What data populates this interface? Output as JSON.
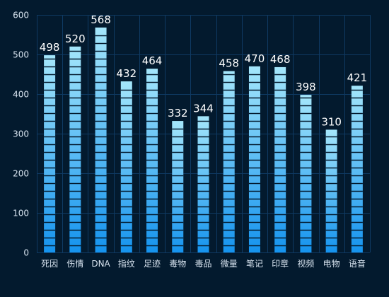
{
  "chart_data": {
    "type": "bar",
    "title": "",
    "xlabel": "",
    "ylabel": "",
    "categories": [
      "死因",
      "伤情",
      "DNA",
      "指纹",
      "足迹",
      "毒物",
      "毒品",
      "微量",
      "笔记",
      "印章",
      "视频",
      "电物",
      "语音"
    ],
    "values": [
      498,
      520,
      568,
      432,
      464,
      332,
      344,
      458,
      470,
      468,
      398,
      310,
      421
    ],
    "ylim": [
      0,
      600
    ],
    "yticks": [
      0,
      100,
      200,
      300,
      400,
      500,
      600
    ],
    "grid": true,
    "legend": "none",
    "data_labels": true
  },
  "colors": {
    "background": "#031a2e",
    "grid": "#0f3a63",
    "bar_top": "#a4e6fb",
    "bar_bottom": "#1593ee",
    "text": "#d8e4f0",
    "data_label": "#ffffff"
  }
}
